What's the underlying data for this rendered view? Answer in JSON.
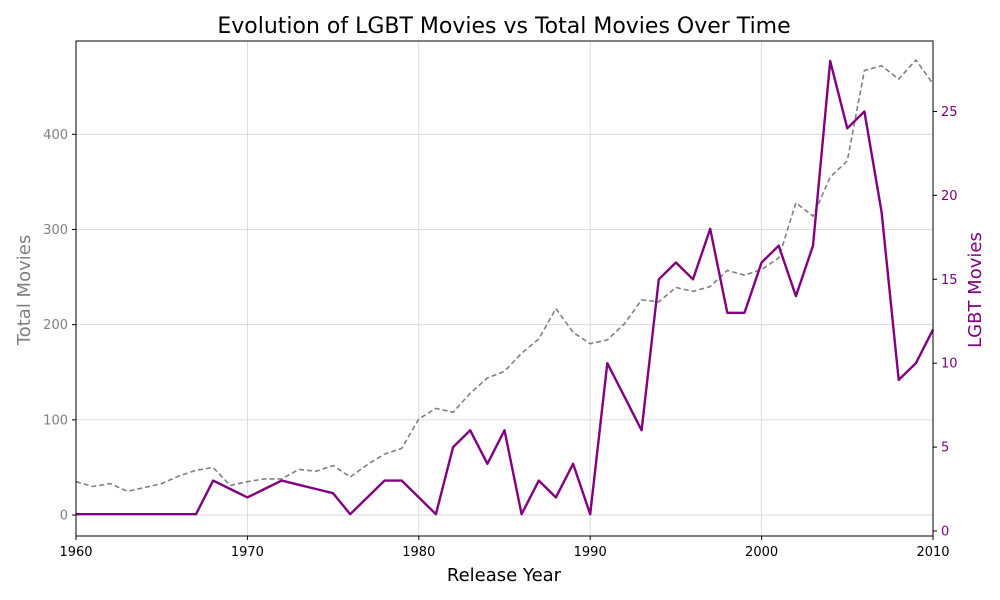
{
  "chart_data": {
    "type": "line",
    "title": "Evolution of LGBT Movies vs Total Movies Over Time",
    "xlabel": "Release Year",
    "ylabel_left": "Total Movies",
    "ylabel_right": "LGBT Movies",
    "xlim": [
      1960,
      2010
    ],
    "ylim_left": [
      -22,
      498
    ],
    "ylim_right": [
      -0.3,
      29.2
    ],
    "x_ticks": [
      1960,
      1970,
      1980,
      1990,
      2000,
      2010
    ],
    "y_ticks_left": [
      0,
      100,
      200,
      300,
      400
    ],
    "y_ticks_right": [
      0,
      5,
      10,
      15,
      20,
      25
    ],
    "grid": true,
    "colors": {
      "total": "#808080",
      "lgbt": "#800080"
    },
    "series": [
      {
        "name": "Total Movies",
        "axis": "left",
        "style": "dashed",
        "x": [
          1960,
          1961,
          1962,
          1963,
          1964,
          1965,
          1966,
          1967,
          1968,
          1969,
          1970,
          1971,
          1972,
          1973,
          1974,
          1975,
          1976,
          1977,
          1978,
          1979,
          1980,
          1981,
          1982,
          1983,
          1984,
          1985,
          1986,
          1987,
          1988,
          1989,
          1990,
          1991,
          1992,
          1993,
          1994,
          1995,
          1996,
          1997,
          1998,
          1999,
          2000,
          2001,
          2002,
          2003,
          2004,
          2005,
          2006,
          2007,
          2008,
          2009,
          2010
        ],
        "values": [
          35,
          30,
          33,
          25,
          29,
          33,
          41,
          47,
          50,
          31,
          35,
          38,
          38,
          48,
          46,
          52,
          40,
          53,
          64,
          70,
          101,
          112,
          108,
          128,
          144,
          151,
          170,
          185,
          217,
          192,
          180,
          184,
          201,
          226,
          224,
          239,
          235,
          240,
          257,
          252,
          258,
          270,
          328,
          314,
          355,
          372,
          467,
          472,
          458,
          478,
          453
        ]
      },
      {
        "name": "LGBT Movies",
        "axis": "right",
        "style": "solid",
        "x": [
          1960,
          1961,
          1962,
          1963,
          1964,
          1965,
          1966,
          1967,
          1968,
          1969,
          1970,
          1971,
          1972,
          1973,
          1974,
          1975,
          1976,
          1977,
          1978,
          1979,
          1980,
          1981,
          1982,
          1983,
          1984,
          1985,
          1986,
          1987,
          1988,
          1989,
          1990,
          1991,
          1992,
          1993,
          1994,
          1995,
          1996,
          1997,
          1998,
          1999,
          2000,
          2001,
          2002,
          2003,
          2004,
          2005,
          2006,
          2007,
          2008,
          2009,
          2010
        ],
        "values": [
          1,
          1,
          1,
          1,
          1,
          1,
          1,
          1,
          3,
          2.5,
          2,
          2.5,
          3,
          2.75,
          2.5,
          2.25,
          1,
          2,
          3,
          3,
          2,
          1,
          5,
          6,
          4,
          6,
          1,
          3,
          2,
          4,
          1,
          10,
          8,
          6,
          15,
          16,
          15,
          18,
          13,
          13,
          16,
          17,
          14,
          17,
          28,
          24,
          25,
          19,
          9,
          10,
          12
        ]
      }
    ]
  }
}
